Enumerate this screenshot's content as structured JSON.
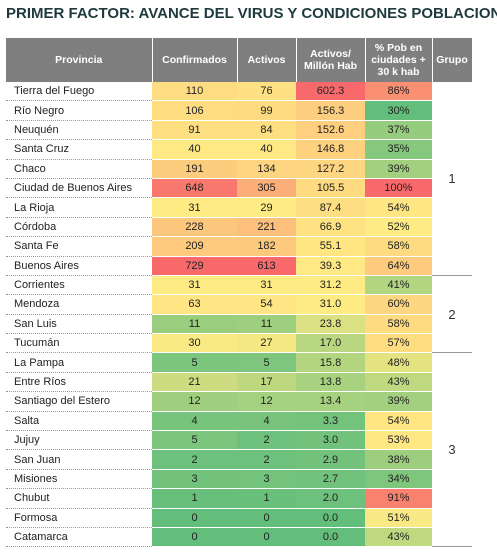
{
  "title": "PRIMER FACTOR: AVANCE DEL VIRUS Y CONDICIONES POBLACION",
  "table": {
    "headers": [
      "Provincia",
      "Confirmados",
      "Activos",
      "Activos/ Millón Hab",
      "% Pob en ciudades + 30 k hab",
      "Grupo"
    ],
    "groups": [
      {
        "label": "1",
        "rows": [
          [
            "Tierra del Fuego",
            "110",
            "76",
            "602.3",
            "86%"
          ],
          [
            "Río Negro",
            "106",
            "99",
            "156.3",
            "30%"
          ],
          [
            "Neuquén",
            "91",
            "84",
            "152.6",
            "37%"
          ],
          [
            "Santa Cruz",
            "40",
            "40",
            "146.8",
            "35%"
          ],
          [
            "Chaco",
            "191",
            "134",
            "127.2",
            "39%"
          ],
          [
            "Ciudad de Buenos Aires",
            "648",
            "305",
            "105.5",
            "100%"
          ],
          [
            "La Rioja",
            "31",
            "29",
            "87.4",
            "54%"
          ],
          [
            "Córdoba",
            "228",
            "221",
            "66.9",
            "52%"
          ],
          [
            "Santa Fe",
            "209",
            "182",
            "55.1",
            "58%"
          ],
          [
            "Buenos Aires",
            "729",
            "613",
            "39.3",
            "64%"
          ]
        ]
      },
      {
        "label": "2",
        "rows": [
          [
            "Corrientes",
            "31",
            "31",
            "31.2",
            "41%"
          ],
          [
            "Mendoza",
            "63",
            "54",
            "31.0",
            "60%"
          ],
          [
            "San Luis",
            "11",
            "11",
            "23.8",
            "58%"
          ],
          [
            "Tucumán",
            "30",
            "27",
            "17.0",
            "57%"
          ]
        ]
      },
      {
        "label": "3",
        "rows": [
          [
            "La Pampa",
            "5",
            "5",
            "15.8",
            "48%"
          ],
          [
            "Entre Ríos",
            "21",
            "17",
            "13.8",
            "43%"
          ],
          [
            "Santiago del Estero",
            "12",
            "12",
            "13.4",
            "39%"
          ],
          [
            "Salta",
            "4",
            "4",
            "3.3",
            "54%"
          ],
          [
            "Jujuy",
            "5",
            "2",
            "3.0",
            "53%"
          ],
          [
            "San Juan",
            "2",
            "2",
            "2.9",
            "38%"
          ],
          [
            "Misiones",
            "3",
            "3",
            "2.7",
            "34%"
          ],
          [
            "Chubut",
            "1",
            "1",
            "2.0",
            "91%"
          ],
          [
            "Formosa",
            "0",
            "0",
            "0.0",
            "51%"
          ],
          [
            "Catamarca",
            "0",
            "0",
            "0.0",
            "43%"
          ]
        ]
      }
    ]
  }
}
